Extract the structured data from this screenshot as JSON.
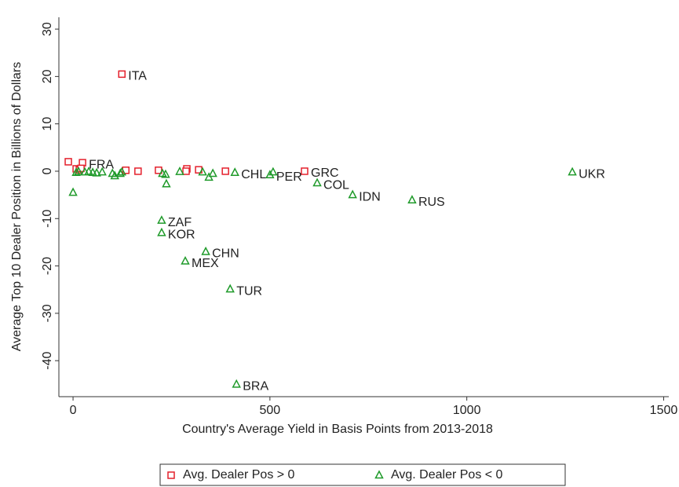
{
  "chart_data": {
    "type": "scatter",
    "xlabel": "Country's Average Yield in Basis Points from 2013-2018",
    "ylabel": "Average Top 10 Dealer Position in Billions of Dollars",
    "xlim": [
      -36,
      1513
    ],
    "ylim": [
      -47.6,
      32.5
    ],
    "xticks": [
      0,
      500,
      1000,
      1500
    ],
    "yticks": [
      30,
      20,
      10,
      0,
      -10,
      -20,
      -30,
      -40
    ],
    "grid": false,
    "legend": "bottom",
    "series": [
      {
        "name": "Avg. Dealer Pos > 0",
        "color": "#e4202c",
        "marker": "square",
        "label_color": "#2f5d8c",
        "x": [
          -12,
          24,
          124,
          8,
          16,
          20,
          134,
          165,
          217,
          289,
          287,
          319,
          387,
          588
        ],
        "y": [
          2,
          1.8,
          20.5,
          0.5,
          0.3,
          0.6,
          0.2,
          0,
          0.2,
          0.5,
          0,
          0.3,
          0,
          0
        ],
        "labels": [
          null,
          "FRA",
          "ITA",
          null,
          null,
          null,
          null,
          null,
          null,
          null,
          null,
          null,
          null,
          "GRC"
        ]
      },
      {
        "name": "Avg. Dealer Pos < 0",
        "color": "#1f9a2a",
        "marker": "triangle",
        "label_color": "#8e3b3b",
        "x": [
          0,
          8,
          14,
          30,
          40,
          50,
          60,
          74,
          100,
          106,
          120,
          124,
          225,
          225,
          227,
          235,
          237,
          271,
          285,
          329,
          337,
          345,
          355,
          399,
          411,
          415,
          500,
          508,
          620,
          710,
          861,
          1268
        ],
        "y": [
          -4.5,
          -0.3,
          -0.1,
          -0.2,
          -0.1,
          -0.3,
          -0.4,
          -0.2,
          -0.5,
          -1,
          -0.5,
          -0.2,
          -10.4,
          -13,
          -0.5,
          -0.7,
          -2.7,
          -0.1,
          -19,
          -0.2,
          -17,
          -1.3,
          -0.5,
          -24.9,
          -0.3,
          -45,
          -0.8,
          -0.2,
          -2.5,
          -5,
          -6.1,
          -0.2
        ],
        "labels": [
          null,
          null,
          null,
          null,
          null,
          null,
          null,
          null,
          null,
          null,
          null,
          null,
          "ZAF",
          "KOR",
          null,
          null,
          null,
          null,
          "MEX",
          null,
          "CHN",
          null,
          null,
          "TUR",
          "CHL",
          "BRA",
          "PER",
          null,
          "COL",
          "IDN",
          "RUS",
          "UKR"
        ]
      }
    ]
  }
}
